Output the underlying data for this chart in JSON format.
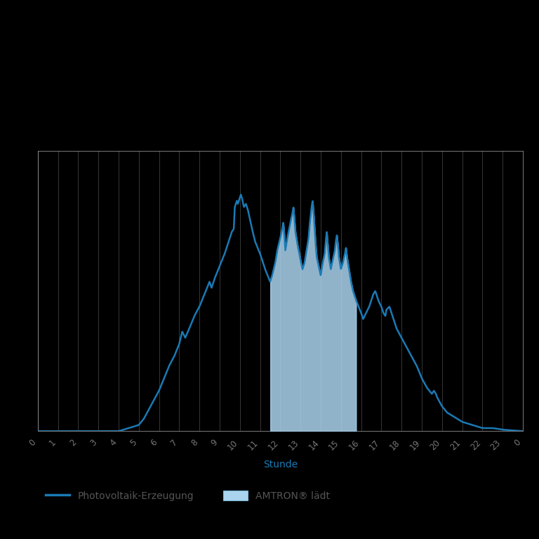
{
  "background_color": "#000000",
  "plot_bg_color": "#000000",
  "line_color": "#1a7ab5",
  "fill_color": "#aad4ee",
  "grid_color": "#ffffff",
  "grid_alpha": 0.25,
  "spine_color": "#ffffff",
  "spine_alpha": 0.3,
  "tick_label_color": "#777777",
  "xlabel": "Stunde",
  "xlabel_color": "#1a7ab5",
  "legend_line_label": "Photovoltaik-Erzeugung",
  "legend_fill_label": "AMTRON® lädt",
  "legend_text_color": "#555555",
  "x_labels": [
    "0",
    "1",
    "2",
    "3",
    "4",
    "5",
    "6",
    "7",
    "8",
    "9",
    "10",
    "11",
    "12",
    "13",
    "14",
    "15",
    "16",
    "17",
    "18",
    "19",
    "20",
    "21",
    "22",
    "23",
    "0"
  ]
}
